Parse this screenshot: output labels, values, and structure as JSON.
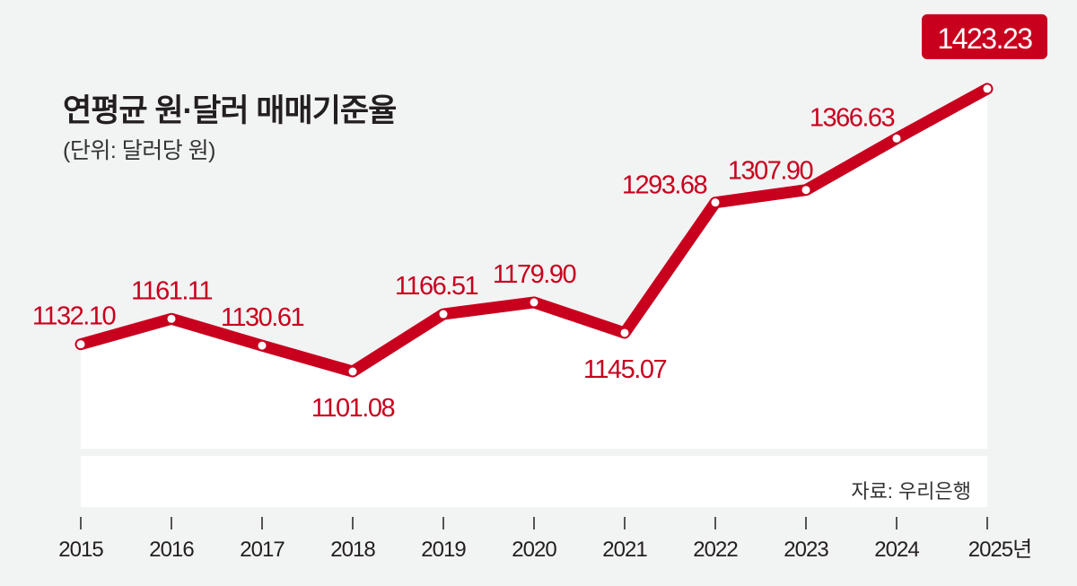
{
  "chart_data": {
    "type": "line",
    "title": "연평균 원·달러 매매기준율",
    "subtitle": "(단위: 달러당 원)",
    "source": "자료: 우리은행",
    "x_unit_suffix": "년",
    "categories": [
      "2015",
      "2016",
      "2017",
      "2018",
      "2019",
      "2020",
      "2021",
      "2022",
      "2023",
      "2024",
      "2025"
    ],
    "values": [
      1132.1,
      1161.11,
      1130.61,
      1101.08,
      1166.51,
      1179.9,
      1145.07,
      1293.68,
      1307.9,
      1366.63,
      1423.23
    ],
    "value_labels": [
      "1132.10",
      "1161.11",
      "1130.61",
      "1101.08",
      "1166.51",
      "1179.90",
      "1145.07",
      "1293.68",
      "1307.90",
      "1366.63",
      "1423.23"
    ],
    "highlight_index": 10,
    "colors": {
      "line": "#c8001e",
      "background": "#f2f3f3",
      "area": "#ffffff",
      "text": "#231f20"
    },
    "grid": false,
    "legend": "none"
  }
}
